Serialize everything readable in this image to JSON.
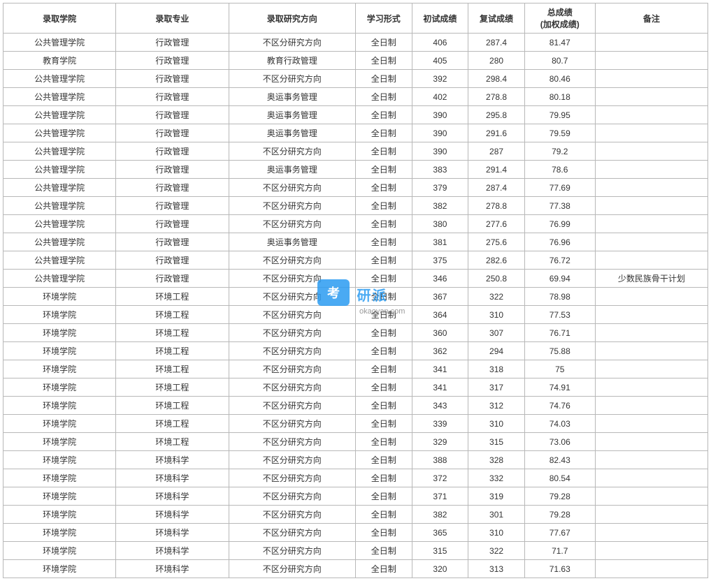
{
  "table": {
    "columns": [
      {
        "key": "college",
        "label": "录取学院",
        "width": "16%",
        "align": "center"
      },
      {
        "key": "major",
        "label": "录取专业",
        "width": "16%",
        "align": "center"
      },
      {
        "key": "direction",
        "label": "录取研究方向",
        "width": "18%",
        "align": "center"
      },
      {
        "key": "mode",
        "label": "学习形式",
        "width": "8%",
        "align": "center"
      },
      {
        "key": "score1",
        "label": "初试成绩",
        "width": "8%",
        "align": "center"
      },
      {
        "key": "score2",
        "label": "复试成绩",
        "width": "8%",
        "align": "center"
      },
      {
        "key": "total",
        "label": "总成绩",
        "sub": "(加权成绩)",
        "width": "10%",
        "align": "center"
      },
      {
        "key": "remark",
        "label": "备注",
        "width": "16%",
        "align": "center"
      }
    ],
    "rows": [
      [
        "公共管理学院",
        "行政管理",
        "不区分研究方向",
        "全日制",
        "406",
        "287.4",
        "81.47",
        ""
      ],
      [
        "教育学院",
        "行政管理",
        "教育行政管理",
        "全日制",
        "405",
        "280",
        "80.7",
        ""
      ],
      [
        "公共管理学院",
        "行政管理",
        "不区分研究方向",
        "全日制",
        "392",
        "298.4",
        "80.46",
        ""
      ],
      [
        "公共管理学院",
        "行政管理",
        "奥运事务管理",
        "全日制",
        "402",
        "278.8",
        "80.18",
        ""
      ],
      [
        "公共管理学院",
        "行政管理",
        "奥运事务管理",
        "全日制",
        "390",
        "295.8",
        "79.95",
        ""
      ],
      [
        "公共管理学院",
        "行政管理",
        "奥运事务管理",
        "全日制",
        "390",
        "291.6",
        "79.59",
        ""
      ],
      [
        "公共管理学院",
        "行政管理",
        "不区分研究方向",
        "全日制",
        "390",
        "287",
        "79.2",
        ""
      ],
      [
        "公共管理学院",
        "行政管理",
        "奥运事务管理",
        "全日制",
        "383",
        "291.4",
        "78.6",
        ""
      ],
      [
        "公共管理学院",
        "行政管理",
        "不区分研究方向",
        "全日制",
        "379",
        "287.4",
        "77.69",
        ""
      ],
      [
        "公共管理学院",
        "行政管理",
        "不区分研究方向",
        "全日制",
        "382",
        "278.8",
        "77.38",
        ""
      ],
      [
        "公共管理学院",
        "行政管理",
        "不区分研究方向",
        "全日制",
        "380",
        "277.6",
        "76.99",
        ""
      ],
      [
        "公共管理学院",
        "行政管理",
        "奥运事务管理",
        "全日制",
        "381",
        "275.6",
        "76.96",
        ""
      ],
      [
        "公共管理学院",
        "行政管理",
        "不区分研究方向",
        "全日制",
        "375",
        "282.6",
        "76.72",
        ""
      ],
      [
        "公共管理学院",
        "行政管理",
        "不区分研究方向",
        "全日制",
        "346",
        "250.8",
        "69.94",
        "少数民族骨干计划"
      ],
      [
        "环境学院",
        "环境工程",
        "不区分研究方向",
        "全日制",
        "367",
        "322",
        "78.98",
        ""
      ],
      [
        "环境学院",
        "环境工程",
        "不区分研究方向",
        "全日制",
        "364",
        "310",
        "77.53",
        ""
      ],
      [
        "环境学院",
        "环境工程",
        "不区分研究方向",
        "全日制",
        "360",
        "307",
        "76.71",
        ""
      ],
      [
        "环境学院",
        "环境工程",
        "不区分研究方向",
        "全日制",
        "362",
        "294",
        "75.88",
        ""
      ],
      [
        "环境学院",
        "环境工程",
        "不区分研究方向",
        "全日制",
        "341",
        "318",
        "75",
        ""
      ],
      [
        "环境学院",
        "环境工程",
        "不区分研究方向",
        "全日制",
        "341",
        "317",
        "74.91",
        ""
      ],
      [
        "环境学院",
        "环境工程",
        "不区分研究方向",
        "全日制",
        "343",
        "312",
        "74.76",
        ""
      ],
      [
        "环境学院",
        "环境工程",
        "不区分研究方向",
        "全日制",
        "339",
        "310",
        "74.03",
        ""
      ],
      [
        "环境学院",
        "环境工程",
        "不区分研究方向",
        "全日制",
        "329",
        "315",
        "73.06",
        ""
      ],
      [
        "环境学院",
        "环境科学",
        "不区分研究方向",
        "全日制",
        "388",
        "328",
        "82.43",
        ""
      ],
      [
        "环境学院",
        "环境科学",
        "不区分研究方向",
        "全日制",
        "372",
        "332",
        "80.54",
        ""
      ],
      [
        "环境学院",
        "环境科学",
        "不区分研究方向",
        "全日制",
        "371",
        "319",
        "79.28",
        ""
      ],
      [
        "环境学院",
        "环境科学",
        "不区分研究方向",
        "全日制",
        "382",
        "301",
        "79.28",
        ""
      ],
      [
        "环境学院",
        "环境科学",
        "不区分研究方向",
        "全日制",
        "365",
        "310",
        "77.67",
        ""
      ],
      [
        "环境学院",
        "环境科学",
        "不区分研究方向",
        "全日制",
        "315",
        "322",
        "71.7",
        ""
      ],
      [
        "环境学院",
        "环境科学",
        "不区分研究方向",
        "全日制",
        "320",
        "313",
        "71.63",
        ""
      ]
    ],
    "border_color": "#b8b8b8",
    "text_color": "#333333",
    "background_color": "#ffffff",
    "font_size": 12,
    "header_font_weight": "bold"
  },
  "watermark": {
    "badge_text": "考",
    "main_text": "研派",
    "sub_text": "okaoyan.com",
    "badge_bg": "#2b9cf2",
    "badge_fg": "#ffffff",
    "text_color": "#2b9cf2",
    "sub_color": "#888888"
  }
}
